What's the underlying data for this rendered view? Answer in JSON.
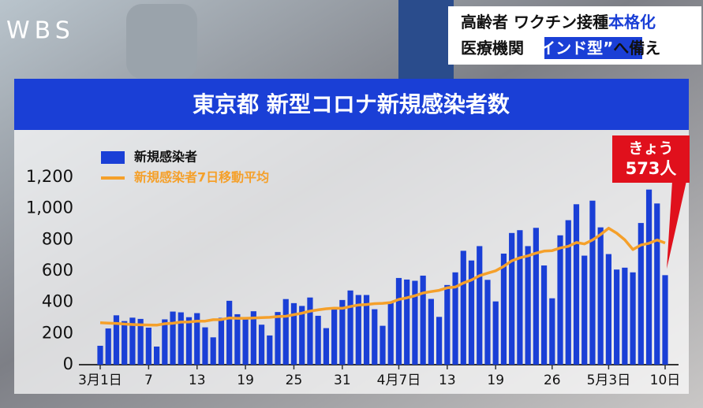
{
  "logo": "WBS",
  "headline": {
    "line1": [
      "高齢者 ワクチン接種",
      "本格化"
    ],
    "line2": [
      "医療機関 ",
      "“インド型”",
      "へ備え"
    ]
  },
  "chart_data": {
    "type": "bar",
    "title": "東京都 新型コロナ新規感染者数",
    "categories": [
      "3月1日",
      null,
      null,
      null,
      null,
      null,
      "7",
      null,
      null,
      null,
      null,
      null,
      "13",
      null,
      null,
      null,
      null,
      null,
      "19",
      null,
      null,
      null,
      null,
      null,
      "25",
      null,
      null,
      null,
      null,
      null,
      "31",
      null,
      null,
      null,
      null,
      null,
      null,
      "4月7日",
      null,
      null,
      null,
      null,
      null,
      "13",
      null,
      null,
      null,
      null,
      null,
      "19",
      null,
      null,
      null,
      null,
      null,
      null,
      "26",
      null,
      null,
      null,
      null,
      null,
      null,
      "5月3日",
      null,
      null,
      null,
      null,
      null,
      null,
      "10日"
    ],
    "series": [
      {
        "name": "新規感染者",
        "type": "bar",
        "color": "#1a3fd6",
        "values": [
          121,
          232,
          316,
          279,
          301,
          293,
          237,
          116,
          290,
          340,
          335,
          304,
          330,
          239,
          175,
          300,
          409,
          323,
          303,
          342,
          256,
          187,
          337,
          420,
          394,
          376,
          430,
          313,
          234,
          364,
          414,
          475,
          446,
          446,
          355,
          249,
          399,
          555,
          545,
          537,
          570,
          421,
          306,
          510,
          591,
          729,
          667,
          759,
          543,
          405,
          711,
          843,
          861,
          759,
          876,
          635,
          425,
          828,
          925,
          1027,
          698,
          1050,
          879,
          708,
          609,
          621,
          591,
          907,
          1121,
          1032,
          573
        ],
        "value_labels": [
          null,
          null,
          null,
          null,
          null,
          null,
          null,
          null,
          null,
          null,
          null,
          null,
          null,
          null,
          null,
          null,
          null,
          null,
          null,
          null,
          null,
          null,
          null,
          null,
          null,
          null,
          null,
          null,
          null,
          null,
          null,
          null,
          null,
          null,
          null,
          null,
          null,
          null,
          null,
          null,
          null,
          null,
          null,
          null,
          null,
          null,
          null,
          null,
          null,
          null,
          null,
          null,
          null,
          null,
          null,
          null,
          null,
          null,
          null,
          null,
          null,
          null,
          null,
          null,
          null,
          null,
          null,
          null,
          null,
          null,
          "573人"
        ]
      },
      {
        "name": "新規感染者7日移動平均",
        "type": "line",
        "color": "#f5a02a",
        "values": [
          268,
          266,
          264,
          260,
          257,
          255,
          254,
          253,
          262,
          265,
          273,
          274,
          279,
          279,
          288,
          289,
          299,
          297,
          297,
          299,
          301,
          303,
          308,
          310,
          320,
          330,
          343,
          351,
          358,
          362,
          361,
          372,
          382,
          385,
          391,
          393,
          398,
          418,
          428,
          441,
          459,
          468,
          476,
          492,
          497,
          523,
          542,
          569,
          586,
          601,
          629,
          665,
          684,
          697,
          714,
          727,
          730,
          747,
          758,
          782,
          773,
          798,
          833,
          874,
          842,
          799,
          737,
          766,
          777,
          798,
          779
        ]
      }
    ],
    "callout": "きょう",
    "ylim": [
      0,
      1200
    ],
    "yticks": [
      0,
      200,
      400,
      600,
      800,
      {
        "value": 1000,
        "label": "1,000"
      },
      {
        "value": 1200,
        "label": "1,200"
      }
    ],
    "legend": "top-left",
    "grid": false
  }
}
